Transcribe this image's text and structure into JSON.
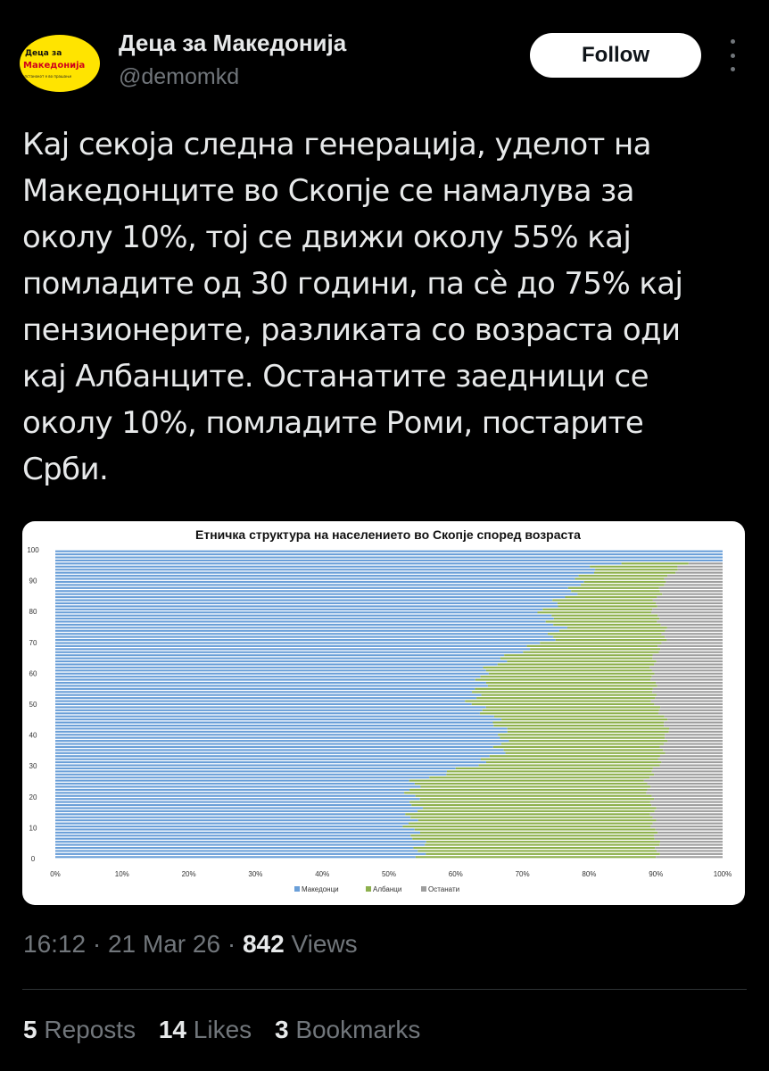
{
  "author": {
    "name": "Деца за Македонија",
    "handle": "@demomkd",
    "avatar_text": [
      "Деца за",
      "Македонија",
      "опстанокот е во прашање"
    ]
  },
  "follow_label": "Follow",
  "tweet_lines": [
    "Кај секоја следна генерација, уделот на",
    "Македонците во Скопје се намалува за",
    "околу 10%, тој се движи околу 55% кај",
    "помладите од 30 години, па сè до 75% кај",
    "пензионерите, разликата со возраста оди",
    "кај Албанците. Останатите заедници се",
    "околу 10%, помладите Роми, постарите",
    "Срби."
  ],
  "meta": {
    "time": "16:12",
    "date": "21 Mar 26",
    "views_count": "842",
    "views_label": "Views",
    "sep": "·"
  },
  "stats": {
    "reposts_count": "5",
    "reposts_label": "Reposts",
    "likes_count": "14",
    "likes_label": "Likes",
    "bookmarks_count": "3",
    "bookmarks_label": "Bookmarks"
  },
  "colors": {
    "macedonians": "#6a9fd8",
    "albanians": "#8db04d",
    "others": "#9e9e9e"
  },
  "chart_data": {
    "type": "bar",
    "orientation": "horizontal-stacked-100",
    "title": "Етничка структура на населението во Скопје според возраста",
    "xlabel": "",
    "ylabel": "",
    "xlim": [
      0,
      100
    ],
    "ylim": [
      0,
      100
    ],
    "x_ticks": [
      "0%",
      "10%",
      "20%",
      "30%",
      "40%",
      "50%",
      "60%",
      "70%",
      "80%",
      "90%",
      "100%"
    ],
    "y_ticks": [
      "0",
      "10",
      "20",
      "30",
      "40",
      "50",
      "60",
      "70",
      "80",
      "90",
      "100"
    ],
    "legend": [
      "Македонци",
      "Албанци",
      "Останати"
    ],
    "legend_position": "bottom",
    "age_keypoints": [
      0,
      10,
      20,
      25,
      30,
      35,
      40,
      45,
      50,
      55,
      60,
      65,
      70,
      75,
      80,
      85,
      90,
      95,
      100
    ],
    "series": [
      {
        "name": "Македонци",
        "values": [
          54,
          54,
          53,
          55,
          62,
          67,
          68,
          65,
          63,
          64,
          63,
          68,
          73,
          75,
          74,
          76,
          78,
          82,
          100
        ]
      },
      {
        "name": "Албанци",
        "values": [
          36,
          36,
          36,
          34,
          28,
          24,
          24,
          26,
          27,
          26,
          26,
          22,
          18,
          16,
          16,
          14,
          13,
          12,
          0
        ]
      },
      {
        "name": "Останати",
        "values": [
          10,
          10,
          11,
          11,
          10,
          9,
          8,
          9,
          10,
          10,
          11,
          10,
          9,
          9,
          10,
          10,
          9,
          6,
          0
        ]
      }
    ]
  }
}
